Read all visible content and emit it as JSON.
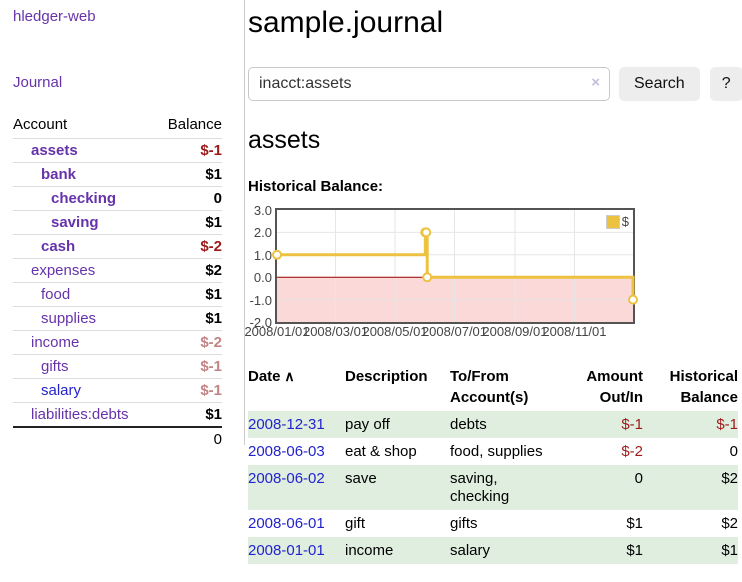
{
  "colors": {
    "link_purple": "#6633aa",
    "link_blue": "#2323cc",
    "negative_strong": "#9d1a1a",
    "negative_dim": "#c48484",
    "stripe_green": "#dfeedf",
    "chart_line": "#edc240",
    "chart_negative_region": "#fbd9d9",
    "chart_zero_line": "#990000",
    "chart_grid": "#e6e6e6",
    "chart_border": "#545454"
  },
  "sidebar": {
    "app_title": "hledger-web",
    "journal_link": "Journal",
    "accounts_table": {
      "account_header": "Account",
      "balance_header": "Balance",
      "rows": [
        {
          "account": "assets",
          "balance": "$-1",
          "level": 1,
          "bold": true,
          "balance_class": "neg-strong",
          "link_class": ""
        },
        {
          "account": "bank",
          "balance": "$1",
          "level": 2,
          "bold": true,
          "balance_class": "",
          "link_class": ""
        },
        {
          "account": "checking",
          "balance": "0",
          "level": 3,
          "bold": true,
          "balance_class": "",
          "link_class": ""
        },
        {
          "account": "saving",
          "balance": "$1",
          "level": 3,
          "bold": true,
          "balance_class": "",
          "link_class": ""
        },
        {
          "account": "cash",
          "balance": "$-2",
          "level": 2,
          "bold": true,
          "balance_class": "neg-strong",
          "link_class": ""
        },
        {
          "account": "expenses",
          "balance": "$2",
          "level": 1,
          "bold": false,
          "balance_class": "",
          "link_class": ""
        },
        {
          "account": "food",
          "balance": "$1",
          "level": 2,
          "bold": false,
          "balance_class": "",
          "link_class": ""
        },
        {
          "account": "supplies",
          "balance": "$1",
          "level": 2,
          "bold": false,
          "balance_class": "",
          "link_class": ""
        },
        {
          "account": "income",
          "balance": "$-2",
          "level": 1,
          "bold": false,
          "balance_class": "neg-dim",
          "link_class": ""
        },
        {
          "account": "gifts",
          "balance": "$-1",
          "level": 2,
          "bold": false,
          "balance_class": "neg-dim",
          "link_class": ""
        },
        {
          "account": "salary",
          "balance": "$-1",
          "level": 2,
          "bold": false,
          "balance_class": "neg-dim",
          "link_class": "blue"
        },
        {
          "account": "liabilities:debts",
          "balance": "$1",
          "level": 1,
          "bold": false,
          "balance_class": "",
          "link_class": ""
        }
      ],
      "total": "0"
    }
  },
  "header": {
    "title": "sample.journal"
  },
  "search": {
    "value": "inacct:assets",
    "clear_icon": "×",
    "button_label": "Search",
    "help_label": "?"
  },
  "account_page": {
    "heading": "assets",
    "chart_title": "Historical Balance:"
  },
  "chart_data": {
    "type": "line",
    "subtype": "step",
    "title": "Historical Balance",
    "x_range": [
      "2008-01-01",
      "2008-12-31"
    ],
    "ylim": [
      -2,
      3
    ],
    "grid": true,
    "legend_position": "top-right",
    "series": [
      {
        "name": "$",
        "color": "#edc240",
        "points": [
          {
            "date": "2008-01-01",
            "value": 1
          },
          {
            "date": "2008-06-01",
            "value": 2
          },
          {
            "date": "2008-06-02",
            "value": 2
          },
          {
            "date": "2008-06-03",
            "value": 0
          },
          {
            "date": "2008-12-31",
            "value": -1
          }
        ]
      }
    ],
    "y_ticks": [
      "3.0",
      "2.0",
      "1.0",
      "0.0",
      "-1.0",
      "-2.0"
    ],
    "y_tick_values": [
      3,
      2,
      1,
      0,
      -1,
      -2
    ],
    "x_ticks": [
      "2008/01/01",
      "2008/03/01",
      "2008/05/01",
      "2008/07/01",
      "2008/09/01",
      "2008/11/01"
    ],
    "legend": {
      "label": "$"
    }
  },
  "register": {
    "columns": [
      {
        "label": "Date",
        "sort_icon": "∧",
        "align": "left"
      },
      {
        "label": "Description",
        "align": "left"
      },
      {
        "label": "To/From\nAccount(s)",
        "align": "left"
      },
      {
        "label": "Amount\nOut/In",
        "align": "right"
      },
      {
        "label": "Historical\nBalance",
        "align": "right"
      }
    ],
    "rows": [
      {
        "date": "2008-12-31",
        "description": "pay off",
        "accounts": "debts",
        "amount": "$-1",
        "amount_negative": true,
        "balance": "$-1",
        "balance_negative": true
      },
      {
        "date": "2008-06-03",
        "description": "eat & shop",
        "accounts": "food, supplies",
        "amount": "$-2",
        "amount_negative": true,
        "balance": "0",
        "balance_negative": false
      },
      {
        "date": "2008-06-02",
        "description": "save",
        "accounts": "saving,\nchecking",
        "amount": "0",
        "amount_negative": false,
        "balance": "$2",
        "balance_negative": false
      },
      {
        "date": "2008-06-01",
        "description": "gift",
        "accounts": "gifts",
        "amount": "$1",
        "amount_negative": false,
        "balance": "$2",
        "balance_negative": false
      },
      {
        "date": "2008-01-01",
        "description": "income",
        "accounts": "salary",
        "amount": "$1",
        "amount_negative": false,
        "balance": "$1",
        "balance_negative": false
      }
    ]
  }
}
